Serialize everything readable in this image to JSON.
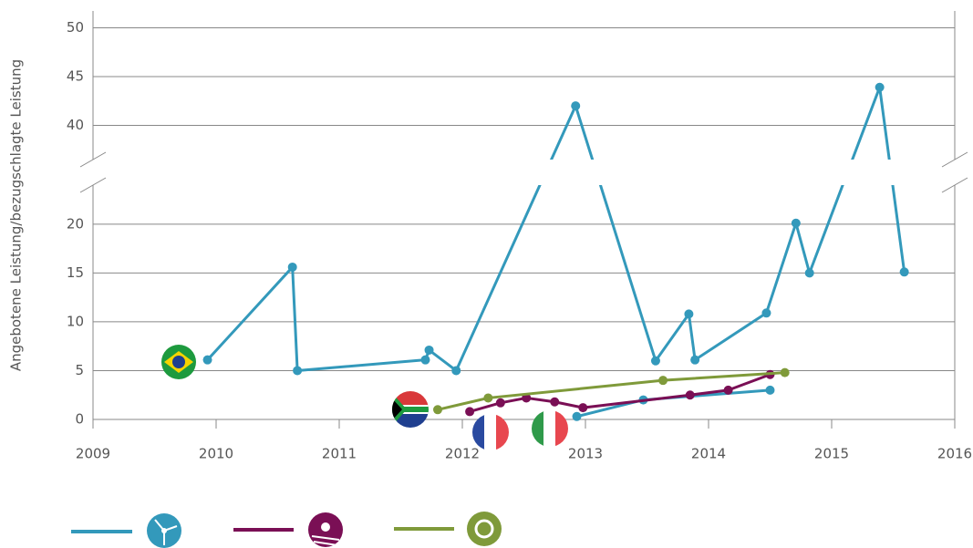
{
  "chart_data": {
    "type": "line",
    "y_label": "Angebotene Leistung/bezugschlagte Leistung",
    "xlim": [
      2009,
      2016
    ],
    "xticks": [
      2009,
      2010,
      2011,
      2012,
      2013,
      2014,
      2015,
      2016
    ],
    "ylim": [
      0,
      52
    ],
    "y_break": [
      24,
      36.5
    ],
    "yticks": [
      0,
      5,
      10,
      15,
      20,
      40,
      45,
      50
    ],
    "grid": true,
    "series": [
      {
        "color": "#3399bb",
        "x": [
          2009.93,
          2010.62,
          2010.66,
          2011.7,
          2011.73,
          2011.95,
          2012.92,
          2013.57,
          2013.84,
          2013.89,
          2014.47,
          2014.71,
          2014.82,
          2015.39,
          2015.59
        ],
        "values": [
          6.1,
          15.6,
          5.0,
          6.1,
          7.1,
          5.0,
          42.0,
          6.0,
          10.8,
          6.1,
          10.9,
          20.1,
          15.0,
          43.9,
          15.1
        ]
      },
      {
        "color": "#3399bb",
        "x": [
          2012.93,
          2013.47,
          2014.5
        ],
        "values": [
          0.3,
          2.0,
          3.0
        ]
      },
      {
        "color": "#7a0f55",
        "x": [
          2012.06,
          2012.31,
          2012.52,
          2012.75,
          2012.98,
          2013.85,
          2014.16,
          2014.5
        ],
        "values": [
          0.8,
          1.7,
          2.2,
          1.8,
          1.2,
          2.5,
          3.0,
          4.6
        ]
      },
      {
        "color": "#7f9a3a",
        "x": [
          2011.8,
          2012.21,
          2013.63,
          2014.62
        ],
        "values": [
          1.0,
          2.2,
          4.0,
          4.8
        ]
      }
    ]
  }
}
